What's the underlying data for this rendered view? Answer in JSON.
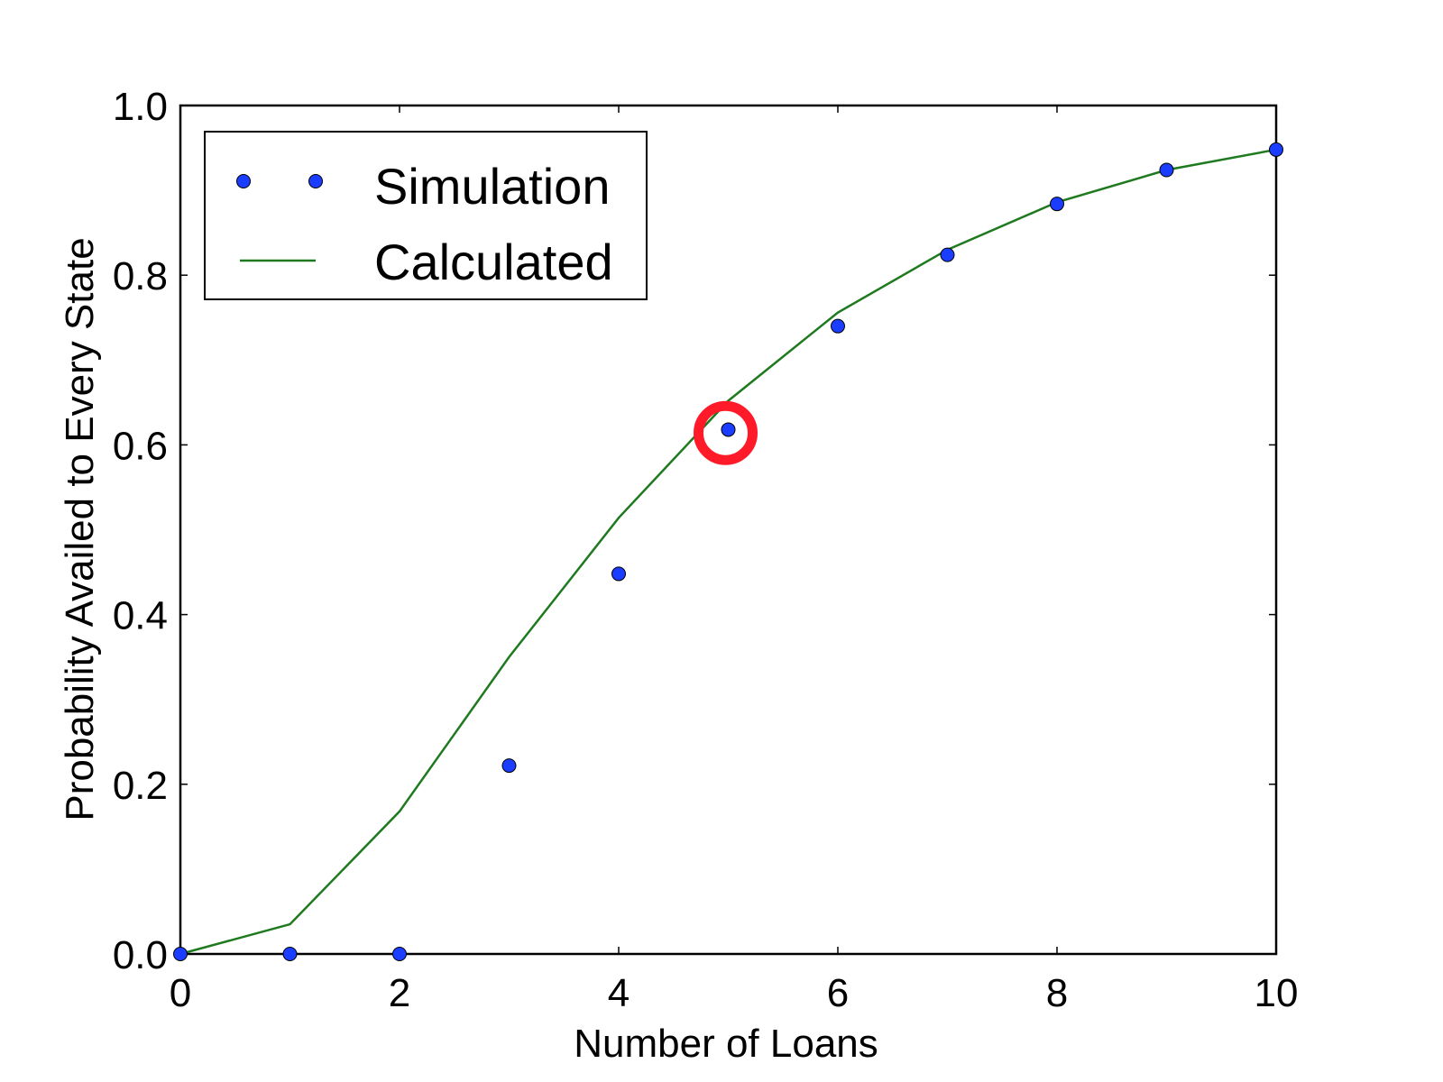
{
  "chart_data": {
    "type": "scatter",
    "xlabel": "Number of Loans",
    "ylabel": "Probability Availed to Every State",
    "xlim": [
      0,
      10
    ],
    "ylim": [
      0.0,
      1.0
    ],
    "xticks": [
      "0",
      "2",
      "4",
      "6",
      "8",
      "10"
    ],
    "yticks": [
      "0.0",
      "0.2",
      "0.4",
      "0.6",
      "0.8",
      "1.0"
    ],
    "legend_position": "top-left",
    "grid": false,
    "series": [
      {
        "name": "Simulation",
        "type": "scatter",
        "color": "#1a3dff",
        "x": [
          0,
          1,
          2,
          3,
          4,
          5,
          6,
          7,
          8,
          9,
          10
        ],
        "y": [
          0.0,
          0.0,
          0.0,
          0.222,
          0.448,
          0.618,
          0.74,
          0.824,
          0.884,
          0.924,
          0.948
        ]
      },
      {
        "name": "Calculated",
        "type": "line",
        "color": "#1f7a1f",
        "x": [
          0,
          1,
          2,
          3,
          4,
          5,
          6,
          7,
          8,
          9,
          10
        ],
        "y": [
          0.0,
          0.035,
          0.168,
          0.35,
          0.514,
          0.652,
          0.756,
          0.83,
          0.886,
          0.924,
          0.948
        ]
      }
    ],
    "annotation": {
      "shape": "ring",
      "color": "#ff1a2a",
      "x": 5,
      "y": 0.614
    }
  }
}
